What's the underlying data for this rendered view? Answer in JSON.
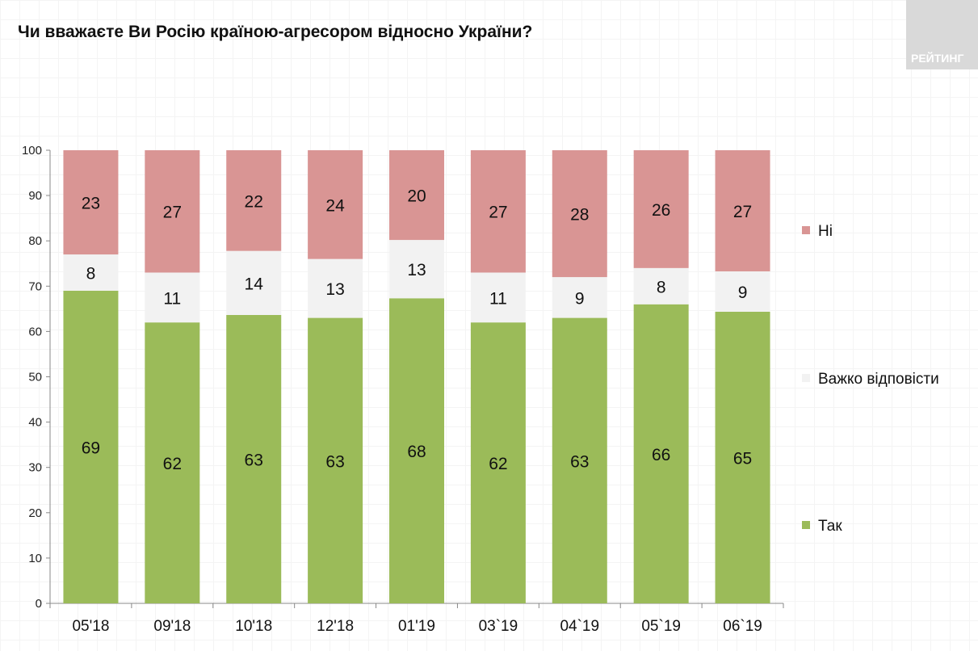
{
  "title": "Чи вважаєте Ви Росію країною-агресором відносно України?",
  "logo": "РЕЙТИНГ",
  "chart_data": {
    "type": "bar",
    "stacked": true,
    "title": "Чи вважаєте Ви Росію країною-агресором відносно України?",
    "categories": [
      "05'18",
      "09'18",
      "10'18",
      "12'18",
      "01'19",
      "03`19",
      "04`19",
      "05`19",
      "06`19"
    ],
    "series": [
      {
        "name": "Так",
        "color": "#9bbb59",
        "values": [
          69,
          62,
          63,
          63,
          68,
          62,
          63,
          66,
          65
        ]
      },
      {
        "name": "Важко відповісти",
        "color": "#f2f2f2",
        "values": [
          8,
          11,
          14,
          13,
          13,
          11,
          9,
          8,
          9
        ]
      },
      {
        "name": "Ні",
        "color": "#d99594",
        "values": [
          23,
          27,
          22,
          24,
          20,
          27,
          28,
          26,
          27
        ]
      }
    ],
    "ylim": [
      0,
      100
    ],
    "yticks": [
      0,
      10,
      20,
      30,
      40,
      50,
      60,
      70,
      80,
      90,
      100
    ],
    "legend": "right"
  }
}
